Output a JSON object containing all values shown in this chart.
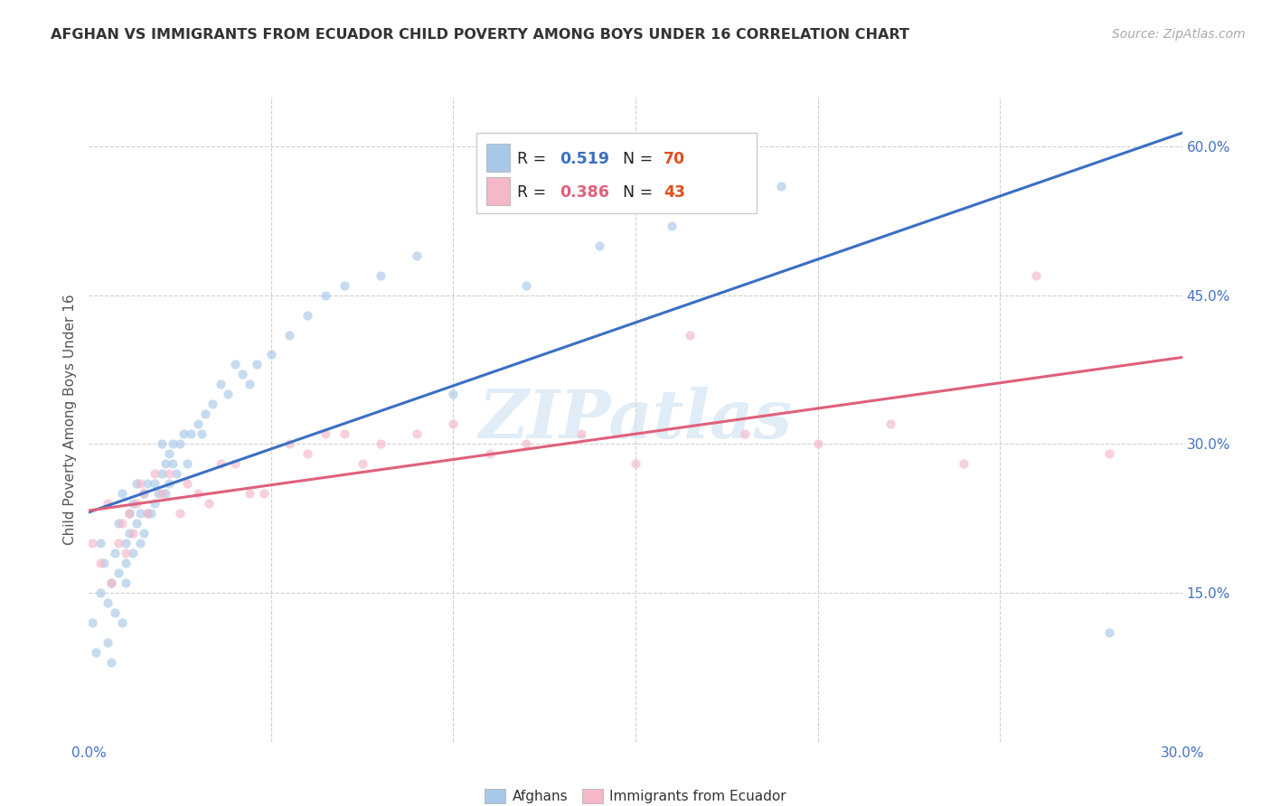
{
  "title": "AFGHAN VS IMMIGRANTS FROM ECUADOR CHILD POVERTY AMONG BOYS UNDER 16 CORRELATION CHART",
  "source": "Source: ZipAtlas.com",
  "ylabel": "Child Poverty Among Boys Under 16",
  "xlim": [
    0.0,
    0.3
  ],
  "ylim": [
    0.0,
    0.65
  ],
  "xticks": [
    0.0,
    0.05,
    0.1,
    0.15,
    0.2,
    0.25,
    0.3
  ],
  "xticklabels": [
    "0.0%",
    "",
    "",
    "",
    "",
    "",
    "30.0%"
  ],
  "yticks": [
    0.0,
    0.15,
    0.3,
    0.45,
    0.6
  ],
  "yticklabels": [
    "",
    "15.0%",
    "30.0%",
    "45.0%",
    "60.0%"
  ],
  "label1": "Afghans",
  "label2": "Immigrants from Ecuador",
  "color1": "#a8c8e8",
  "color2": "#f4b8c8",
  "line_color1": "#3a6fc4",
  "line_color2": "#e0607a",
  "r1_val": "0.519",
  "n1_val": "70",
  "r2_val": "0.386",
  "n2_val": "43",
  "watermark": "ZIPatlas",
  "background_color": "#ffffff",
  "grid_color": "#d0d0d0",
  "scatter_alpha": 0.65,
  "scatter_size": 55,
  "afghan_x": [
    0.001,
    0.002,
    0.003,
    0.003,
    0.004,
    0.005,
    0.005,
    0.006,
    0.006,
    0.007,
    0.007,
    0.008,
    0.008,
    0.009,
    0.009,
    0.01,
    0.01,
    0.01,
    0.011,
    0.011,
    0.012,
    0.012,
    0.013,
    0.013,
    0.014,
    0.014,
    0.015,
    0.015,
    0.016,
    0.016,
    0.017,
    0.018,
    0.018,
    0.019,
    0.02,
    0.02,
    0.021,
    0.021,
    0.022,
    0.022,
    0.023,
    0.023,
    0.024,
    0.025,
    0.026,
    0.027,
    0.028,
    0.03,
    0.031,
    0.032,
    0.034,
    0.036,
    0.038,
    0.04,
    0.042,
    0.044,
    0.046,
    0.05,
    0.055,
    0.06,
    0.065,
    0.07,
    0.08,
    0.09,
    0.1,
    0.12,
    0.14,
    0.16,
    0.19,
    0.28
  ],
  "afghan_y": [
    0.12,
    0.09,
    0.15,
    0.2,
    0.18,
    0.14,
    0.1,
    0.08,
    0.16,
    0.19,
    0.13,
    0.22,
    0.17,
    0.25,
    0.12,
    0.2,
    0.18,
    0.16,
    0.21,
    0.23,
    0.24,
    0.19,
    0.22,
    0.26,
    0.23,
    0.2,
    0.21,
    0.25,
    0.23,
    0.26,
    0.23,
    0.24,
    0.26,
    0.25,
    0.27,
    0.3,
    0.25,
    0.28,
    0.29,
    0.26,
    0.3,
    0.28,
    0.27,
    0.3,
    0.31,
    0.28,
    0.31,
    0.32,
    0.31,
    0.33,
    0.34,
    0.36,
    0.35,
    0.38,
    0.37,
    0.36,
    0.38,
    0.39,
    0.41,
    0.43,
    0.45,
    0.46,
    0.47,
    0.49,
    0.35,
    0.46,
    0.5,
    0.52,
    0.56,
    0.11
  ],
  "ecuador_x": [
    0.001,
    0.003,
    0.005,
    0.006,
    0.008,
    0.009,
    0.01,
    0.011,
    0.012,
    0.013,
    0.014,
    0.015,
    0.016,
    0.018,
    0.02,
    0.022,
    0.025,
    0.027,
    0.03,
    0.033,
    0.036,
    0.04,
    0.044,
    0.048,
    0.055,
    0.06,
    0.065,
    0.07,
    0.075,
    0.08,
    0.09,
    0.1,
    0.11,
    0.12,
    0.135,
    0.15,
    0.165,
    0.18,
    0.2,
    0.22,
    0.24,
    0.26,
    0.28
  ],
  "ecuador_y": [
    0.2,
    0.18,
    0.24,
    0.16,
    0.2,
    0.22,
    0.19,
    0.23,
    0.21,
    0.24,
    0.26,
    0.25,
    0.23,
    0.27,
    0.25,
    0.27,
    0.23,
    0.26,
    0.25,
    0.24,
    0.28,
    0.28,
    0.25,
    0.25,
    0.3,
    0.29,
    0.31,
    0.31,
    0.28,
    0.3,
    0.31,
    0.32,
    0.29,
    0.3,
    0.31,
    0.28,
    0.41,
    0.31,
    0.3,
    0.32,
    0.28,
    0.47,
    0.29
  ]
}
